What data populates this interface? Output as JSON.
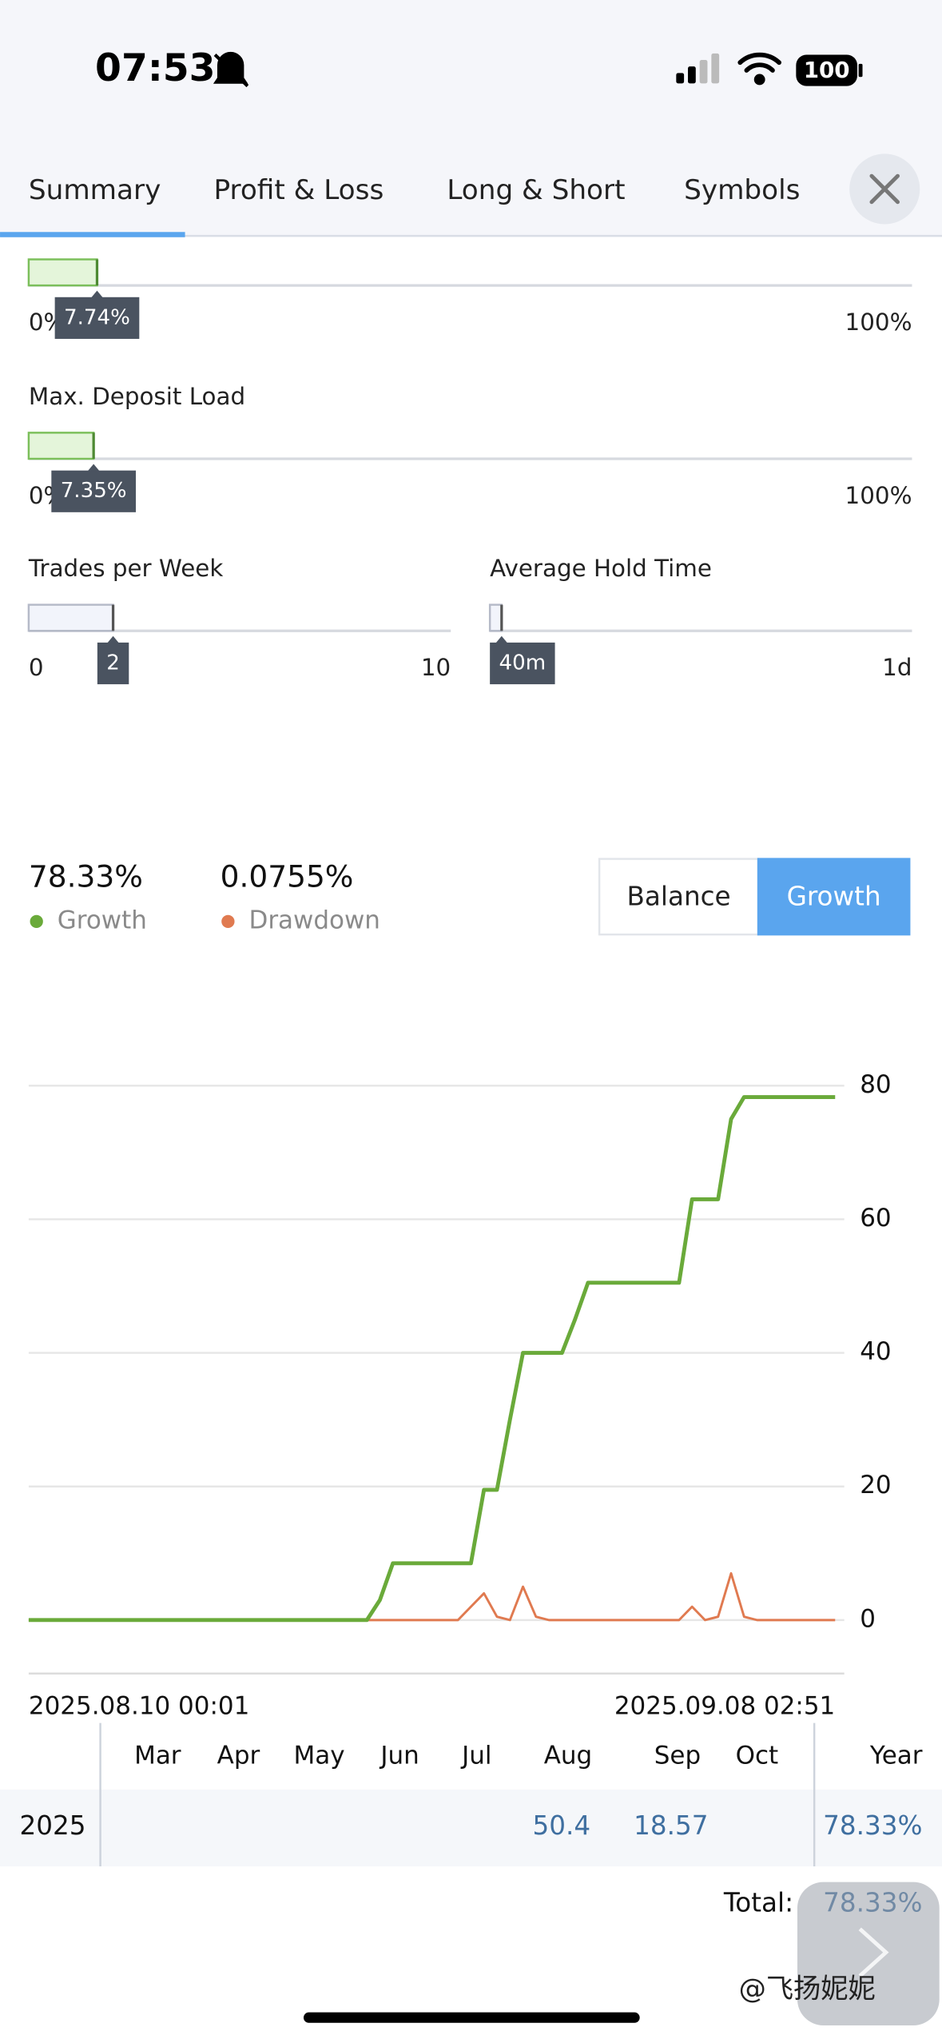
{
  "status_bar": {
    "time": "07:53",
    "battery": "100"
  },
  "tabs": [
    "Summary",
    "Profit & Loss",
    "Long & Short",
    "Symbols"
  ],
  "sliders": [
    {
      "min": {
        "value": 0,
        "label": "0%"
      },
      "max": {
        "value": 100,
        "label": "100%"
      },
      "value": {
        "value": 7.74,
        "label": "7.74%"
      }
    },
    {
      "label": "Max. Deposit Load",
      "min": {
        "value": 0,
        "label": "0%"
      },
      "max": {
        "value": 100,
        "label": "100%"
      },
      "value": {
        "value": 7.35,
        "label": "7.35%"
      }
    },
    {
      "label": "Trades per Week",
      "min": 0,
      "max": 10,
      "value": 2
    },
    {
      "label": "Average Hold Time",
      "max": {
        "value": 1440,
        "label": "1d"
      },
      "value": {
        "value": 40,
        "label": "40m"
      }
    }
  ],
  "stats": [
    {
      "value": {
        "value": 78.33,
        "label": "78.33%"
      },
      "name": "Growth",
      "color": "#6aaa3a"
    },
    {
      "value": {
        "value": 0.0755,
        "label": "0.0755%"
      },
      "name": "Drawdown",
      "color": "#e07a50"
    }
  ],
  "toggle": {
    "options": [
      "Balance",
      "Growth"
    ],
    "selected": "Growth"
  },
  "chart_data": {
    "type": "line",
    "series": [
      {
        "name": "Growth",
        "color": "#6aaa3a",
        "values": [
          0,
          0,
          0,
          0,
          0,
          0,
          0,
          0,
          0,
          0,
          0,
          0,
          0,
          0,
          0,
          0,
          0,
          0,
          0,
          0,
          0,
          0,
          0,
          0,
          0,
          0,
          0,
          3,
          8.5,
          8.5,
          8.5,
          8.5,
          8.5,
          8.5,
          8.5,
          19.5,
          19.5,
          30,
          40,
          40,
          40,
          40,
          45,
          50.5,
          50.5,
          50.5,
          50.5,
          50.5,
          50.5,
          50.5,
          50.5,
          63,
          63,
          63,
          75,
          78.3,
          78.3,
          78.3,
          78.3,
          78.3,
          78.3,
          78.3,
          78.3
        ]
      },
      {
        "name": "Drawdown",
        "color": "#e07a50",
        "values": [
          0,
          0,
          0,
          0,
          0,
          0,
          0,
          0,
          0,
          0,
          0,
          0,
          0,
          0,
          0,
          0,
          0,
          0,
          0,
          0,
          0,
          0,
          0,
          0,
          0,
          0,
          0,
          0,
          0,
          0,
          0,
          0,
          0,
          0,
          2,
          4,
          0.5,
          0,
          5,
          0.5,
          0,
          0,
          0,
          0,
          0,
          0,
          0,
          0,
          0,
          0,
          0,
          2,
          0,
          0.5,
          7,
          0.5,
          0,
          0,
          0,
          0,
          0,
          0,
          0
        ]
      }
    ],
    "ylim": [
      -8,
      80
    ],
    "yticks": [
      0,
      20,
      40,
      60,
      80
    ],
    "grid": true,
    "x_start_label": "2025.08.10 00:01",
    "x_end_label": "2025.09.08 02:51"
  },
  "table": {
    "columns": [
      "Mar",
      "Apr",
      "May",
      "Jun",
      "Jul",
      "Aug",
      "Sep",
      "Oct"
    ],
    "year_header": "Year",
    "rows": [
      {
        "year": "2025",
        "cells": [
          null,
          null,
          null,
          null,
          null,
          50.4,
          18.57,
          null
        ],
        "total": {
          "value": 78.33,
          "label": "78.33%"
        }
      }
    ]
  },
  "total": {
    "label": "Total:",
    "value": {
      "value": 78.33,
      "label": "78.33%"
    }
  },
  "watermark": "@飞扬妮妮"
}
